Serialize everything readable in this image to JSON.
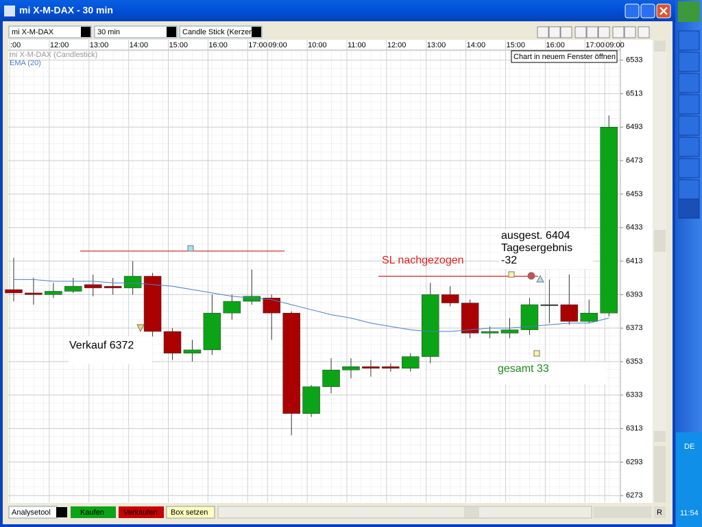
{
  "window": {
    "title": "mi X-M-DAX - 30 min"
  },
  "toolbar": {
    "instrument": "mi X-M-DAX",
    "interval": "30 min",
    "chart_type": "Candle Stick (Kerzen"
  },
  "tooltip": "Chart in neuem Fenster öffnen",
  "chart_data": {
    "type": "candlestick",
    "instrument_label": "mi X-M-DAX (Candlestick)",
    "categories": [
      ":00",
      null,
      "12:00",
      null,
      "13:00",
      null,
      "14:00",
      null,
      "15:00",
      null,
      "16:00",
      null,
      "17:00",
      "09:00",
      null,
      "10:00",
      null,
      "11:00",
      null,
      "12:00",
      null,
      "13:00",
      null,
      "14:00",
      null,
      "15:00",
      null,
      "16:00",
      null,
      "17:00",
      "09:00"
    ],
    "open": [
      6396,
      6394,
      6393,
      6395,
      6399,
      6398,
      6397,
      6404,
      6371,
      6358,
      6360,
      6382,
      6389,
      6391,
      6382,
      6322,
      6338,
      6348,
      6350,
      6350,
      6349,
      6356,
      6393,
      6388,
      6370,
      6370,
      6372,
      6387,
      6387,
      6377,
      6382
    ],
    "high": [
      6415,
      6403,
      6400,
      6403,
      6405,
      6403,
      6413,
      6406,
      6373,
      6366,
      6393,
      6393,
      6408,
      6393,
      6383,
      6339,
      6355,
      6355,
      6354,
      6352,
      6358,
      6400,
      6398,
      6390,
      6374,
      6379,
      6391,
      6402,
      6405,
      6390,
      6500
    ],
    "low": [
      6389,
      6387,
      6391,
      6394,
      6392,
      6393,
      6393,
      6368,
      6354,
      6353,
      6357,
      6378,
      6387,
      6366,
      6309,
      6320,
      6334,
      6343,
      6344,
      6347,
      6347,
      6352,
      6386,
      6367,
      6367,
      6367,
      6369,
      6376,
      6375,
      6376,
      6380
    ],
    "close": [
      6394,
      6393,
      6395,
      6398,
      6397,
      6397,
      6404,
      6371,
      6358,
      6360,
      6382,
      6389,
      6392,
      6382,
      6322,
      6338,
      6348,
      6350,
      6349,
      6349,
      6356,
      6393,
      6388,
      6370,
      6371,
      6372,
      6387,
      6387,
      6377,
      6382,
      6493
    ],
    "up_color": "#0aa416",
    "down_color": "#aa0000",
    "ema": {
      "name": "EMA (20)",
      "color": "#4a7fc1",
      "values": [
        6402,
        6402,
        6401,
        6401,
        6401,
        6400,
        6400,
        6399,
        6398,
        6396,
        6394,
        6392,
        6391,
        6390,
        6387,
        6384,
        6381,
        6379,
        6376,
        6374,
        6372,
        6371,
        6371,
        6372,
        6373,
        6373,
        6374,
        6375,
        6376,
        6376,
        6379
      ]
    },
    "hlines": [
      6419,
      6404
    ],
    "ylim": [
      6269,
      6539
    ],
    "yticks": [
      6533,
      6513,
      6493,
      6473,
      6453,
      6433,
      6413,
      6393,
      6373,
      6353,
      6333,
      6313,
      6293,
      6273
    ],
    "grid": true,
    "annotations": [
      "Verkauf  6372",
      "SL nachgezogen",
      "ausgest.   6404",
      "Tagesergebnis",
      "-32",
      "gesamt  33"
    ]
  },
  "bottom_bar": {
    "tool": "Analysetool",
    "buy": "Kaufen",
    "sell": "Verkaufen",
    "box": "Box setzen",
    "r": "R"
  },
  "taskbar": {
    "language": "DE",
    "clock": "11:54"
  }
}
